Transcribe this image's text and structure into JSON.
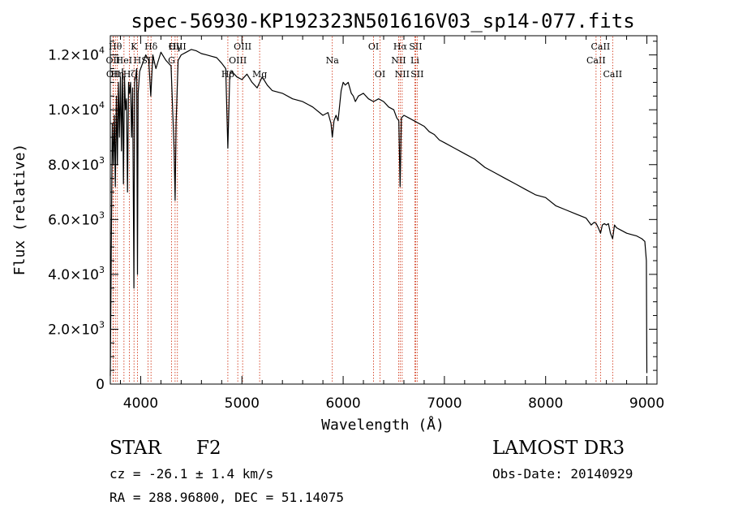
{
  "chart_data": {
    "type": "line",
    "title": "spec-56930-KP192323N501616V03_sp14-077.fits",
    "xlabel": "Wavelength (Å)",
    "ylabel": "Flux (relative)",
    "xlim": [
      3700,
      9100
    ],
    "ylim": [
      0,
      12700
    ],
    "x_ticks": [
      4000,
      5000,
      6000,
      7000,
      8000,
      9000
    ],
    "y_ticks": [
      0,
      2000,
      4000,
      6000,
      8000,
      10000,
      12000
    ],
    "y_tick_labels": [
      {
        "mant": "0",
        "exp": ""
      },
      {
        "mant": "2.0×10",
        "exp": "3"
      },
      {
        "mant": "4.0×10",
        "exp": "3"
      },
      {
        "mant": "6.0×10",
        "exp": "3"
      },
      {
        "mant": "8.0×10",
        "exp": "3"
      },
      {
        "mant": "1.0×10",
        "exp": "4"
      },
      {
        "mant": "1.2×10",
        "exp": "4"
      }
    ],
    "series": [
      {
        "name": "flux",
        "x": [
          3700,
          3710,
          3720,
          3730,
          3740,
          3750,
          3760,
          3770,
          3780,
          3790,
          3800,
          3810,
          3820,
          3830,
          3840,
          3850,
          3860,
          3870,
          3880,
          3890,
          3900,
          3910,
          3920,
          3930,
          3933,
          3940,
          3950,
          3960,
          3968,
          3975,
          3990,
          4000,
          4020,
          4050,
          4080,
          4100,
          4120,
          4150,
          4200,
          4250,
          4300,
          4330,
          4340,
          4350,
          4370,
          4400,
          4450,
          4500,
          4550,
          4600,
          4650,
          4700,
          4750,
          4800,
          4840,
          4861,
          4880,
          4900,
          4950,
          5000,
          5050,
          5100,
          5150,
          5200,
          5250,
          5300,
          5400,
          5500,
          5600,
          5700,
          5800,
          5850,
          5880,
          5893,
          5910,
          5930,
          5950,
          5980,
          6000,
          6020,
          6050,
          6080,
          6100,
          6120,
          6150,
          6200,
          6250,
          6300,
          6350,
          6400,
          6450,
          6500,
          6530,
          6550,
          6563,
          6575,
          6600,
          6650,
          6700,
          6750,
          6800,
          6850,
          6900,
          6950,
          7000,
          7100,
          7200,
          7300,
          7400,
          7500,
          7600,
          7700,
          7800,
          7900,
          8000,
          8100,
          8200,
          8300,
          8400,
          8450,
          8480,
          8500,
          8520,
          8542,
          8560,
          8580,
          8600,
          8620,
          8640,
          8662,
          8680,
          8700,
          8750,
          8800,
          8850,
          8900,
          8950,
          8980,
          8995,
          9000
        ],
        "values": [
          300,
          5000,
          9500,
          8000,
          9800,
          7200,
          10500,
          8000,
          11000,
          9000,
          11200,
          8500,
          11500,
          7300,
          11200,
          10000,
          10400,
          7000,
          11000,
          10600,
          11000,
          9000,
          10800,
          5500,
          3500,
          11000,
          11200,
          11500,
          4000,
          10600,
          11400,
          11500,
          11700,
          12000,
          11800,
          10500,
          12000,
          11500,
          12100,
          11800,
          11600,
          8600,
          6700,
          9500,
          11800,
          12000,
          12100,
          12200,
          12150,
          12050,
          12000,
          11950,
          11900,
          11700,
          11500,
          8600,
          11300,
          11400,
          11200,
          11100,
          11300,
          11000,
          10800,
          11200,
          10900,
          10700,
          10600,
          10400,
          10300,
          10100,
          9800,
          9900,
          9500,
          9000,
          9600,
          9800,
          9600,
          10700,
          11000,
          10900,
          11000,
          10600,
          10500,
          10300,
          10500,
          10600,
          10400,
          10300,
          10400,
          10300,
          10100,
          10000,
          9700,
          9600,
          7200,
          9700,
          9800,
          9700,
          9600,
          9500,
          9400,
          9200,
          9100,
          8900,
          8800,
          8600,
          8400,
          8200,
          7900,
          7700,
          7500,
          7300,
          7100,
          6900,
          6800,
          6500,
          6350,
          6200,
          6050,
          5800,
          5900,
          5850,
          5700,
          5500,
          5800,
          5850,
          5800,
          5850,
          5500,
          5300,
          5800,
          5700,
          5600,
          5500,
          5450,
          5400,
          5300,
          5200,
          4500,
          400
        ]
      }
    ],
    "line_markers": [
      {
        "x": 3750,
        "row": 1,
        "label": "Hθ"
      },
      {
        "x": 3727,
        "row": 2,
        "label": "OII"
      },
      {
        "x": 3730,
        "row": 3,
        "label": "OII"
      },
      {
        "x": 3770,
        "row": 3,
        "label": "Hη"
      },
      {
        "x": 3835,
        "row": 2,
        "label": "HeI"
      },
      {
        "x": 3889,
        "row": 3,
        "label": "Hζ"
      },
      {
        "x": 3934,
        "row": 1,
        "label": "K"
      },
      {
        "x": 3968,
        "row": 2,
        "label": "H"
      },
      {
        "x": 4072,
        "row": 2,
        "label": "SII"
      },
      {
        "x": 4102,
        "row": 1,
        "label": "Hδ"
      },
      {
        "x": 4305,
        "row": 2,
        "label": "G"
      },
      {
        "x": 4340,
        "row": 1,
        "label": "Hγ"
      },
      {
        "x": 4363,
        "row": 1,
        "label": "OIII"
      },
      {
        "x": 4861,
        "row": 3,
        "label": "Hβ"
      },
      {
        "x": 4959,
        "row": 2,
        "label": "OIII"
      },
      {
        "x": 5007,
        "row": 1,
        "label": "OIII"
      },
      {
        "x": 5175,
        "row": 3,
        "label": "Mg"
      },
      {
        "x": 5893,
        "row": 2,
        "label": "Na"
      },
      {
        "x": 6300,
        "row": 1,
        "label": "OI"
      },
      {
        "x": 6364,
        "row": 3,
        "label": "OI"
      },
      {
        "x": 6548,
        "row": 2,
        "label": "NII"
      },
      {
        "x": 6563,
        "row": 1,
        "label": "Hα"
      },
      {
        "x": 6583,
        "row": 3,
        "label": "NII"
      },
      {
        "x": 6708,
        "row": 2,
        "label": "Li"
      },
      {
        "x": 6716,
        "row": 1,
        "label": "SII"
      },
      {
        "x": 6731,
        "row": 3,
        "label": "SII"
      },
      {
        "x": 8498,
        "row": 2,
        "label": "CaII"
      },
      {
        "x": 8542,
        "row": 1,
        "label": "CaII"
      },
      {
        "x": 8662,
        "row": 3,
        "label": "CaII"
      }
    ],
    "grid": false,
    "legend": "none"
  },
  "info": {
    "class": "STAR",
    "subclass": "F2",
    "survey": "LAMOST DR3",
    "cz": "cz = -26.1 ± 1.4 km/s",
    "coords": "RA = 288.96800, DEC =  51.14075",
    "obs_date": "Obs-Date: 20140929"
  }
}
